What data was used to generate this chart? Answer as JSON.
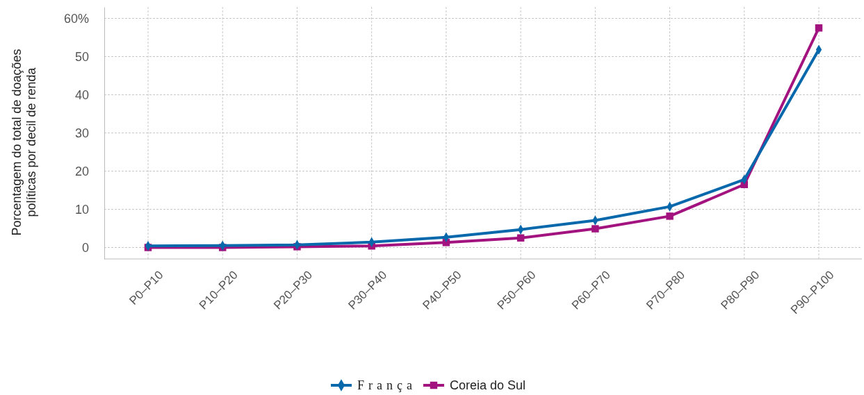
{
  "chart_data": {
    "type": "line",
    "ylabel": "Porcentagem do total de doações políticas por decil de renda",
    "categories": [
      "P0–P10",
      "P10–P20",
      "P20–P30",
      "P30–P40",
      "P40–P50",
      "P50–P60",
      "P60–P70",
      "P70–P80",
      "P80–P90",
      "P90–P100"
    ],
    "series": [
      {
        "name": "França",
        "color": "#0868ac",
        "marker": "diamond",
        "values": [
          0.4,
          0.5,
          0.7,
          1.4,
          2.7,
          4.7,
          7.1,
          10.7,
          17.8,
          51.8
        ]
      },
      {
        "name": "Coreia do Sul",
        "color": "#a3137f",
        "marker": "square",
        "values": [
          0,
          0,
          0.2,
          0.4,
          1.3,
          2.5,
          4.9,
          8.2,
          16.5,
          57.5
        ]
      }
    ],
    "ylim": [
      -3,
      63
    ],
    "yticks": [
      0,
      10,
      20,
      30,
      40,
      50,
      {
        "value": 60,
        "label": "60%"
      }
    ],
    "grid": true,
    "legend": "bottom",
    "line_style": "solid"
  }
}
